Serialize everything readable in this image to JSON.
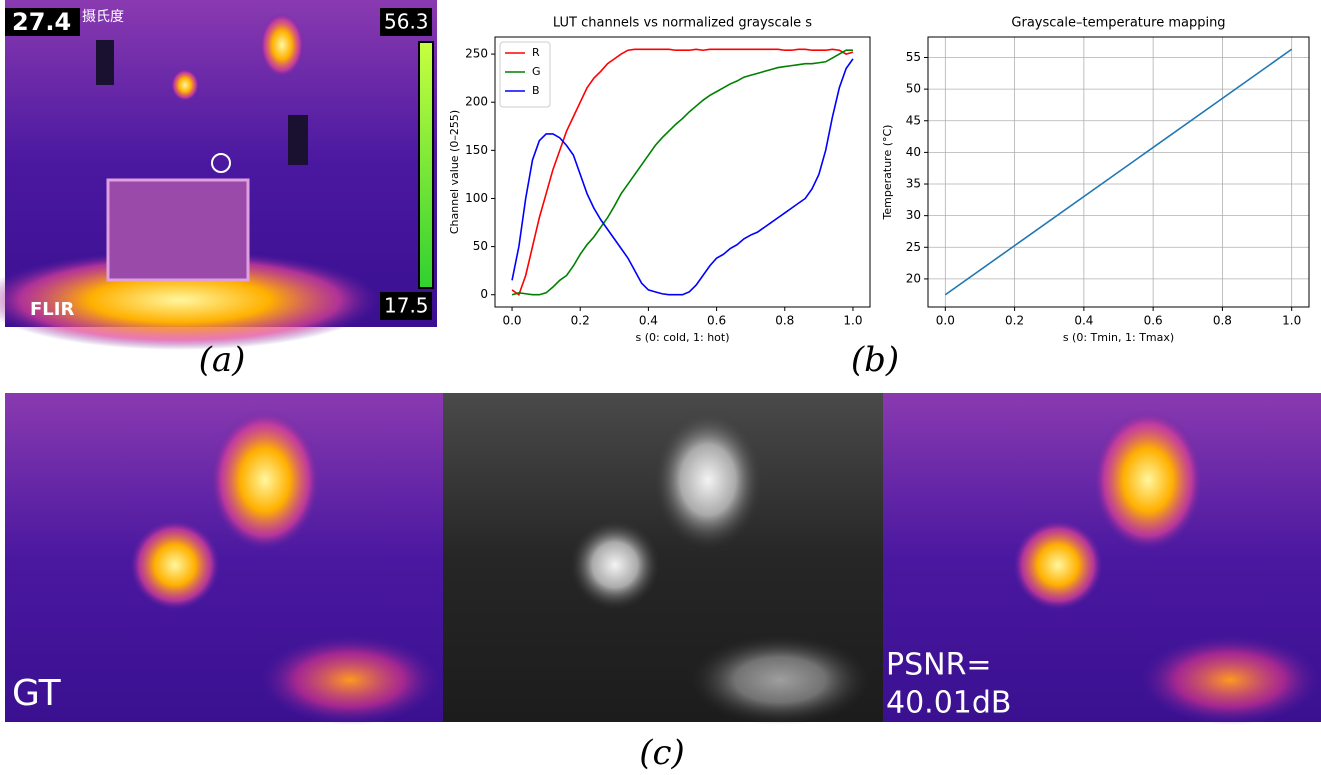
{
  "panel_a": {
    "temperature": "27.4",
    "unit": "摄氏度",
    "max": "56.3",
    "min": "17.5",
    "brand": "FLIR",
    "label": "(a)"
  },
  "panel_b": {
    "label": "(b)"
  },
  "panel_c": {
    "gt_label": "GT",
    "psnr_label": "PSNR=",
    "psnr_value": "40.01dB",
    "label": "(c)"
  },
  "chart_data": [
    {
      "type": "line",
      "title": "LUT channels vs normalized grayscale s",
      "x_label": "s (0: cold, 1: hot)",
      "y_label": "Channel value (0–255)",
      "x": [
        0,
        0.02,
        0.04,
        0.06,
        0.08,
        0.1,
        0.12,
        0.14,
        0.16,
        0.18,
        0.2,
        0.22,
        0.24,
        0.26,
        0.28,
        0.3,
        0.32,
        0.34,
        0.36,
        0.38,
        0.4,
        0.42,
        0.44,
        0.46,
        0.48,
        0.5,
        0.52,
        0.54,
        0.56,
        0.58,
        0.6,
        0.62,
        0.64,
        0.66,
        0.68,
        0.7,
        0.72,
        0.74,
        0.76,
        0.78,
        0.8,
        0.82,
        0.84,
        0.86,
        0.88,
        0.9,
        0.92,
        0.94,
        0.96,
        0.98,
        1.0
      ],
      "series": [
        {
          "name": "R",
          "color": "#ff0000",
          "values": [
            5,
            0,
            20,
            50,
            80,
            105,
            130,
            150,
            170,
            185,
            200,
            215,
            225,
            232,
            240,
            245,
            250,
            254,
            255,
            255,
            255,
            255,
            255,
            255,
            254,
            254,
            254,
            255,
            254,
            255,
            255,
            255,
            255,
            255,
            255,
            255,
            255,
            255,
            255,
            255,
            254,
            254,
            255,
            255,
            254,
            254,
            254,
            255,
            254,
            250,
            252
          ]
        },
        {
          "name": "G",
          "color": "#008000",
          "values": [
            0,
            2,
            1,
            0,
            0,
            2,
            8,
            15,
            20,
            30,
            42,
            52,
            60,
            70,
            80,
            92,
            105,
            115,
            125,
            135,
            145,
            155,
            163,
            170,
            177,
            183,
            190,
            196,
            202,
            207,
            211,
            215,
            219,
            222,
            226,
            228,
            230,
            232,
            234,
            236,
            237,
            238,
            239,
            240,
            240,
            241,
            242,
            246,
            250,
            254,
            254
          ]
        },
        {
          "name": "B",
          "color": "#0000ff",
          "values": [
            15,
            50,
            100,
            140,
            160,
            167,
            167,
            163,
            155,
            145,
            125,
            105,
            90,
            78,
            68,
            58,
            48,
            38,
            25,
            12,
            5,
            3,
            1,
            0,
            0,
            0,
            3,
            10,
            20,
            30,
            38,
            42,
            48,
            52,
            58,
            62,
            65,
            70,
            75,
            80,
            85,
            90,
            95,
            100,
            110,
            125,
            150,
            185,
            215,
            235,
            245
          ]
        }
      ],
      "xlim": [
        -0.05,
        1.05
      ],
      "ylim": [
        -12.75,
        267.75
      ],
      "xticks": [
        {
          "value": 0,
          "label": "0.0"
        },
        {
          "value": 0.2,
          "label": "0.2"
        },
        {
          "value": 0.4,
          "label": "0.4"
        },
        {
          "value": 0.6,
          "label": "0.6"
        },
        {
          "value": 0.8,
          "label": "0.8"
        },
        {
          "value": 1,
          "label": "1.0"
        }
      ],
      "yticks": [
        0,
        50,
        100,
        150,
        200,
        250
      ],
      "grid": false,
      "legend": "upper-left"
    },
    {
      "type": "line",
      "title": "Grayscale–temperature mapping",
      "x_label": "s (0: Tmin, 1: Tmax)",
      "y_label": "Temperature (°C)",
      "x": [
        0,
        1
      ],
      "series": [
        {
          "color": "#1f77b4",
          "values": [
            17.5,
            56.3
          ]
        }
      ],
      "xlim": [
        -0.05,
        1.05
      ],
      "ylim": [
        15.56,
        58.24
      ],
      "xticks": [
        {
          "value": 0,
          "label": "0.0"
        },
        {
          "value": 0.2,
          "label": "0.2"
        },
        {
          "value": 0.4,
          "label": "0.4"
        },
        {
          "value": 0.6,
          "label": "0.6"
        },
        {
          "value": 0.8,
          "label": "0.8"
        },
        {
          "value": 1,
          "label": "1.0"
        }
      ],
      "yticks": [
        20,
        25,
        30,
        35,
        40,
        45,
        50,
        55
      ],
      "grid": true
    }
  ]
}
